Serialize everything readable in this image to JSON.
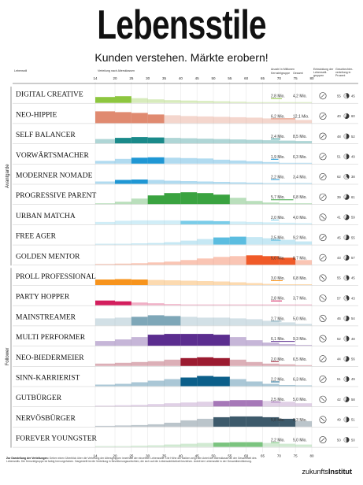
{
  "header": {
    "title": "Lebensstile",
    "subtitle": "Kunden verstehen. Märkte erobern!"
  },
  "columns": {
    "lebensstil": "Lebensstil",
    "verteilung": "Verteilung nach Altersklassen",
    "anzahl": "Anzahl in Millionen",
    "anzahl_sub1": "Kernzielgruppe",
    "anzahl_sub2": "Gesamt",
    "entwicklung": "Entwicklung der Lebensstil-gruppen",
    "geschlecht": "Geschlechter-verteilung in Prozent"
  },
  "groups": {
    "avantgarde": "Avantgarde",
    "follower": "Follower"
  },
  "footer": {
    "heading": "Zur Darstellung der Verteilungen:",
    "text": "Geben einen Überblick über die Verteilung der Altersgruppen innerhalb der einzelnen Lebensstile. Die Höhe der Balken zeigt den Anteil der Altersklasse an der Gesamtheit des Lebensstils. Die Kernzielgruppe ist farbig hervorgehoben. Dargestellt ist die Verteilung in Bevölkerungsschichten, die sich auf die Lebenswirklichkeit beziehen. Anteil der Lebensstile in der Gesamtbevölkerung."
  },
  "logo": {
    "part1": "zukunfts",
    "part2": "Institut"
  },
  "chart_data": {
    "type": "bar",
    "x_ticks": [
      14,
      20,
      25,
      30,
      35,
      40,
      45,
      50,
      55,
      60,
      65,
      70,
      75,
      80
    ],
    "categories": [
      "14",
      "20",
      "25",
      "30",
      "35",
      "40",
      "45",
      "50",
      "55",
      "60",
      "65",
      "70",
      "75"
    ],
    "series": [
      {
        "name": "DIGITAL CREATIVE",
        "color": "#8dc63f",
        "core": 2.8,
        "core_label": "2,8 Mio.",
        "total": "4,2 Mio.",
        "trend": "up",
        "male": 55,
        "female": 45,
        "values": [
          0.75,
          0.85,
          0.6,
          0.45,
          0.35,
          0.3,
          0.25,
          0.2,
          0.15,
          0.1,
          0.05,
          0.05,
          0.03
        ],
        "core_bins": [
          0,
          1
        ]
      },
      {
        "name": "NEO-HIPPIE",
        "color": "#e08a70",
        "core": 6.2,
        "core_label": "6,2 Mio.",
        "total": "12,1 Mio.",
        "trend": "up",
        "male": 40,
        "female": 60,
        "values": [
          1.5,
          1.4,
          1.3,
          1.1,
          1.0,
          0.9,
          0.85,
          0.8,
          0.75,
          0.7,
          0.6,
          0.5,
          0.4
        ],
        "core_bins": [
          0,
          1,
          2,
          3
        ]
      },
      {
        "name": "SELF BALANCER",
        "color": "#1a8a8a",
        "core": 2.4,
        "core_label": "2,4 Mio.",
        "total": "8,5 Mio.",
        "trend": "up",
        "male": 48,
        "female": 52,
        "values": [
          0.55,
          0.7,
          0.8,
          0.75,
          0.7,
          0.65,
          0.6,
          0.55,
          0.5,
          0.45,
          0.4,
          0.35,
          0.3
        ],
        "core_bins": [
          1,
          2,
          3
        ]
      },
      {
        "name": "VORWÄRTSMACHER",
        "color": "#1f97d4",
        "core": 1.9,
        "core_label": "1,9 Mio.",
        "total": "6,3 Mio.",
        "trend": "up",
        "male": 51,
        "female": 49,
        "values": [
          0.35,
          0.6,
          0.75,
          0.8,
          0.75,
          0.7,
          0.65,
          0.5,
          0.4,
          0.3,
          0.2,
          0.1,
          0.05
        ],
        "core_bins": [
          2,
          3
        ]
      },
      {
        "name": "MODERNER NOMADE",
        "color": "#1f97d4",
        "core": 2.2,
        "core_label": "2,2 Mio.",
        "total": "3,4 Mio.",
        "trend": "up",
        "male": 62,
        "female": 38,
        "values": [
          0.3,
          0.5,
          0.55,
          0.5,
          0.4,
          0.35,
          0.3,
          0.25,
          0.2,
          0.15,
          0.1,
          0.05,
          0.03
        ],
        "core_bins": [
          1,
          2
        ]
      },
      {
        "name": "PROGRESSIVE PARENT",
        "color": "#3aa340",
        "core": 5.7,
        "core_label": "5,7 Mio.",
        "total": "6,8 Mio.",
        "trend": "up",
        "male": 39,
        "female": 61,
        "values": [
          0.1,
          0.3,
          0.7,
          1.1,
          1.4,
          1.5,
          1.4,
          1.2,
          0.8,
          0.4,
          0.2,
          0.1,
          0.05
        ],
        "core_bins": [
          3,
          4,
          5,
          6,
          7
        ]
      },
      {
        "name": "URBAN MATCHA",
        "color": "#79cce8",
        "core": 2.0,
        "core_label": "2,0 Mio.",
        "total": "4,0 Mio.",
        "trend": "down",
        "male": 41,
        "female": 59,
        "values": [
          0.3,
          0.45,
          0.5,
          0.5,
          0.5,
          0.45,
          0.45,
          0.4,
          0.35,
          0.3,
          0.25,
          0.2,
          0.15
        ],
        "core_bins": [
          5,
          6,
          7
        ]
      },
      {
        "name": "FREE AGER",
        "color": "#5bbde0",
        "core": 2.5,
        "core_label": "2,5 Mio.",
        "total": "9,2 Mio.",
        "trend": "up",
        "male": 45,
        "female": 55,
        "values": [
          0.1,
          0.1,
          0.15,
          0.2,
          0.3,
          0.5,
          0.7,
          0.9,
          1.0,
          0.95,
          0.8,
          0.6,
          0.4
        ],
        "core_bins": [
          7,
          8
        ]
      },
      {
        "name": "GOLDEN MENTOR",
        "color": "#f05a28",
        "core": 5.0,
        "core_label": "5,0 Mio.",
        "total": "8,7 Mio.",
        "trend": "up",
        "male": 43,
        "female": 57,
        "values": [
          0.1,
          0.15,
          0.2,
          0.3,
          0.4,
          0.6,
          0.8,
          1.0,
          1.1,
          1.2,
          1.1,
          0.9,
          0.6
        ],
        "core_bins": [
          9,
          10,
          11
        ]
      },
      {
        "name": "PROLL PROFESSIONAL",
        "color": "#f7941d",
        "core": 3.0,
        "core_label": "3,0 Mio.",
        "total": "6,8 Mio.",
        "trend": "down",
        "male": 55,
        "female": 45,
        "values": [
          0.7,
          0.75,
          0.7,
          0.65,
          0.6,
          0.55,
          0.5,
          0.45,
          0.35,
          0.25,
          0.15,
          0.1,
          0.05
        ],
        "core_bins": [
          0,
          1,
          2
        ]
      },
      {
        "name": "PARTY HOPPER",
        "color": "#d31e5d",
        "core": 2.8,
        "core_label": "2,8 Mio.",
        "total": "3,7 Mio.",
        "trend": "down",
        "male": 57,
        "female": 43,
        "values": [
          0.6,
          0.5,
          0.35,
          0.25,
          0.15,
          0.1,
          0.08,
          0.05,
          0.04,
          0.03,
          0.02,
          0.02,
          0.01
        ],
        "core_bins": [
          0,
          1
        ]
      },
      {
        "name": "MAINSTREAMER",
        "color": "#7ea7b8",
        "core": 2.7,
        "core_label": "2,7 Mio.",
        "total": "5,0 Mio.",
        "trend": "down",
        "male": 46,
        "female": 54,
        "values": [
          0.9,
          1.0,
          1.1,
          1.3,
          1.2,
          1.1,
          1.0,
          1.0,
          0.9,
          0.8,
          0.6,
          0.4,
          0.2
        ],
        "core_bins": [
          2,
          3,
          4
        ]
      },
      {
        "name": "MULTI PERFORMER",
        "color": "#5b2d8f",
        "core": 6.1,
        "core_label": "6,1 Mio.",
        "total": "9,3 Mio.",
        "trend": "down",
        "male": 52,
        "female": 48,
        "values": [
          0.6,
          0.8,
          1.1,
          1.4,
          1.5,
          1.5,
          1.5,
          1.4,
          1.1,
          0.7,
          0.4,
          0.2,
          0.1
        ],
        "core_bins": [
          3,
          4,
          5,
          6,
          7
        ]
      },
      {
        "name": "NEO-BIEDERMEIER",
        "color": "#9b1b30",
        "core": 2.0,
        "core_label": "2,0 Mio.",
        "total": "6,5 Mio.",
        "trend": "up",
        "male": 44,
        "female": 56,
        "values": [
          0.3,
          0.4,
          0.5,
          0.6,
          0.8,
          1.0,
          1.1,
          1.0,
          0.8,
          0.5,
          0.3,
          0.2,
          0.1
        ],
        "core_bins": [
          5,
          6,
          7
        ]
      },
      {
        "name": "SINN-KARRIERIST",
        "color": "#0b5f8a",
        "core": 2.2,
        "core_label": "2,2 Mio.",
        "total": "6,3 Mio.",
        "trend": "up",
        "male": 51,
        "female": 49,
        "values": [
          0.2,
          0.3,
          0.5,
          0.7,
          0.9,
          1.1,
          1.3,
          1.2,
          0.9,
          0.6,
          0.3,
          0.15,
          0.05
        ],
        "core_bins": [
          5,
          6,
          7
        ]
      },
      {
        "name": "GUTBÜRGER",
        "color": "#a678b8",
        "core": 2.5,
        "core_label": "2,5 Mio.",
        "total": "5,0 Mio.",
        "trend": "down",
        "male": 42,
        "female": 58,
        "values": [
          0.1,
          0.15,
          0.2,
          0.3,
          0.4,
          0.5,
          0.6,
          0.7,
          0.8,
          0.8,
          0.7,
          0.6,
          0.4
        ],
        "core_bins": [
          7,
          8,
          9
        ]
      },
      {
        "name": "NERVÖSBÜRGER",
        "color": "#3d5a6b",
        "core": 5.8,
        "core_label": "5,8 Mio.",
        "total": "6,3 Mio.",
        "trend": "down",
        "male": 49,
        "female": 51,
        "values": [
          0.1,
          0.15,
          0.2,
          0.3,
          0.5,
          0.8,
          1.0,
          1.2,
          1.3,
          1.3,
          1.2,
          1.0,
          0.7
        ],
        "core_bins": [
          7,
          8,
          9,
          10,
          11
        ]
      },
      {
        "name": "FOREVER YOUNGSTER",
        "color": "#7bc47f",
        "core": 2.2,
        "core_label": "2,2 Mio.",
        "total": "5,0 Mio.",
        "trend": "up",
        "male": 50,
        "female": 50,
        "values": [
          0.1,
          0.1,
          0.15,
          0.2,
          0.3,
          0.4,
          0.5,
          0.55,
          0.6,
          0.6,
          0.5,
          0.4,
          0.3
        ],
        "core_bins": [
          7,
          8,
          9
        ]
      }
    ]
  }
}
